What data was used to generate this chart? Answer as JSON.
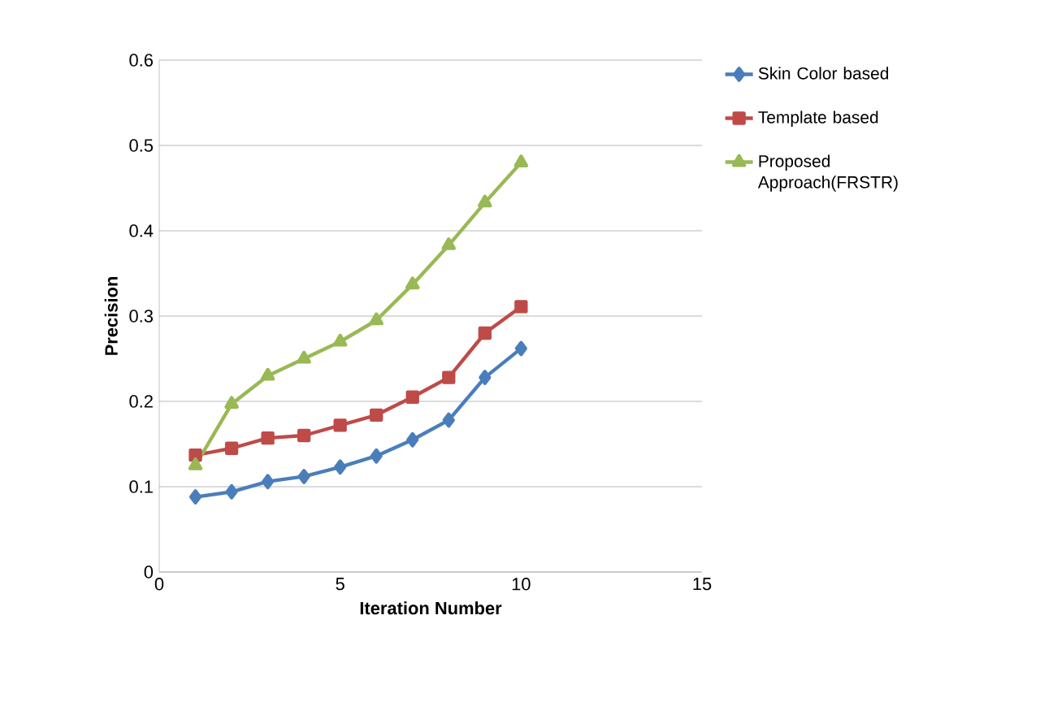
{
  "chart_data": {
    "type": "line",
    "xlabel": "Iteration Number",
    "ylabel": "Precision",
    "x": [
      1,
      2,
      3,
      4,
      5,
      6,
      7,
      8,
      9,
      10
    ],
    "series": [
      {
        "name": "Skin Color based",
        "color": "#4a7ebb",
        "marker": "diamond",
        "values": [
          0.088,
          0.094,
          0.106,
          0.112,
          0.123,
          0.136,
          0.155,
          0.178,
          0.228,
          0.262
        ]
      },
      {
        "name": "Template based",
        "color": "#be4b48",
        "marker": "square",
        "values": [
          0.137,
          0.145,
          0.157,
          0.16,
          0.172,
          0.184,
          0.205,
          0.228,
          0.28,
          0.311
        ]
      },
      {
        "name": "Proposed Approach(FRSTR)",
        "color": "#98b954",
        "marker": "triangle",
        "values": [
          0.125,
          0.197,
          0.23,
          0.25,
          0.27,
          0.295,
          0.337,
          0.383,
          0.433,
          0.48
        ]
      }
    ],
    "xlim": [
      0,
      15
    ],
    "xticks": [
      0,
      5,
      10,
      15
    ],
    "ylim": [
      0,
      0.6
    ],
    "yticks": [
      0,
      0.1,
      0.2,
      0.3,
      0.4,
      0.5,
      0.6
    ],
    "grid": "y",
    "legend": "right"
  }
}
